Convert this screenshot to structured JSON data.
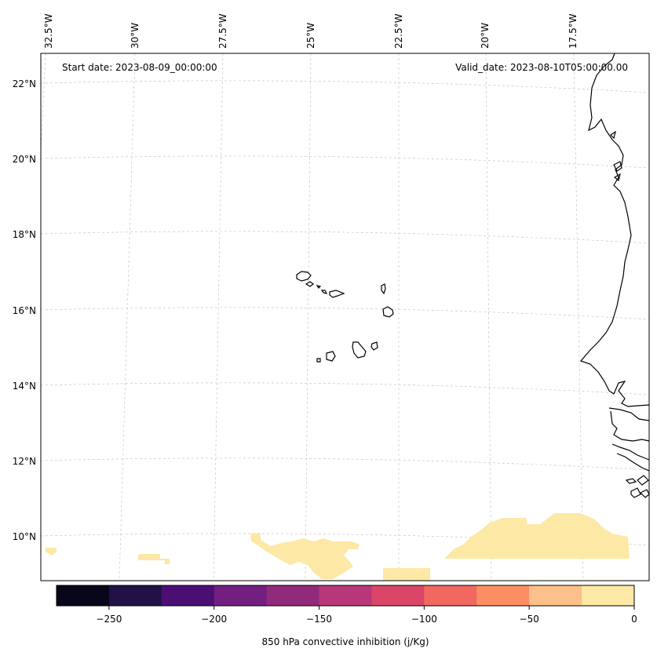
{
  "header": {
    "start_date": "Start date: 2023-08-09_00:00:00",
    "valid_date": "Valid_date: 2023-08-10T05:00:00.00"
  },
  "map": {
    "projection": "oblique",
    "extent": {
      "lon_min": -33.0,
      "lon_max": -15.5,
      "lat_min": 8.8,
      "lat_max": 22.8
    },
    "longitude_labels": [
      "32.5°W",
      "30°W",
      "27.5°W",
      "25°W",
      "22.5°W",
      "20°W",
      "17.5°W"
    ],
    "latitude_labels": [
      "22°N",
      "20°N",
      "18°N",
      "16°N",
      "14°N",
      "12°N",
      "10°N"
    ],
    "gridlines": "dashed",
    "field_fill_color": "#fde8a5",
    "coastline_color": "#000000"
  },
  "colorbar": {
    "label": "850 hPa convective inhibition (j/Kg)",
    "range": [
      -275,
      0
    ],
    "ticks": [
      "−250",
      "−200",
      "−150",
      "−100",
      "−50",
      "0"
    ],
    "tick_values": [
      -250,
      -200,
      -150,
      -100,
      -50,
      0
    ],
    "levels": [
      -275,
      -250,
      -225,
      -200,
      -175,
      -150,
      -125,
      -100,
      -75,
      -50,
      -25,
      0
    ],
    "colors": [
      "#07061a",
      "#211147",
      "#4b0f73",
      "#721f81",
      "#922a7c",
      "#b83779",
      "#d94668",
      "#f06860",
      "#fb8f63",
      "#fec08a",
      "#fde8a5"
    ]
  }
}
